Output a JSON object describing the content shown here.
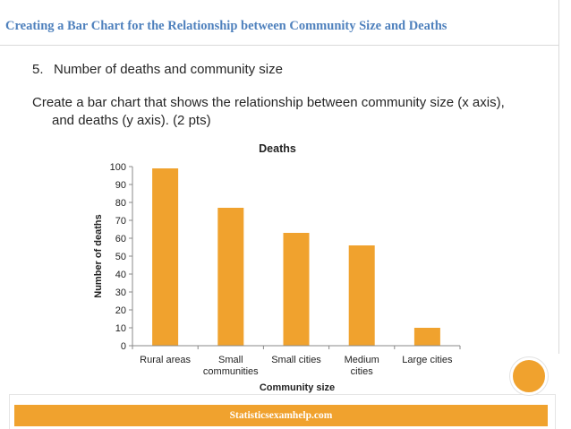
{
  "slide": {
    "title": "Creating a Bar Chart for the Relationship between Community Size and Deaths",
    "item1_number": "5.",
    "item1_text": "Number of deaths and community size",
    "item2_line1": "Create a bar chart that shows the relationship between community size (x axis),",
    "item2_line2": "and deaths (y axis). (2 pts)"
  },
  "footer": {
    "text": "Statisticsexamhelp.com"
  },
  "colors": {
    "accent": "#f0a22e",
    "title": "#4f81bd"
  },
  "chart_data": {
    "type": "bar",
    "title": "Deaths",
    "xlabel": "Community size",
    "ylabel": "Number of deaths",
    "categories": [
      [
        "Rural areas"
      ],
      [
        "Small",
        "communities"
      ],
      [
        "Small cities"
      ],
      [
        "Medium",
        "cities"
      ],
      [
        "Large cities"
      ]
    ],
    "values": [
      99,
      77,
      63,
      56,
      10
    ],
    "ylim": [
      0,
      100
    ],
    "yticks": [
      0,
      10,
      20,
      30,
      40,
      50,
      60,
      70,
      80,
      90,
      100
    ],
    "grid": false,
    "legend": "none",
    "bar_color": "#f0a22e"
  }
}
